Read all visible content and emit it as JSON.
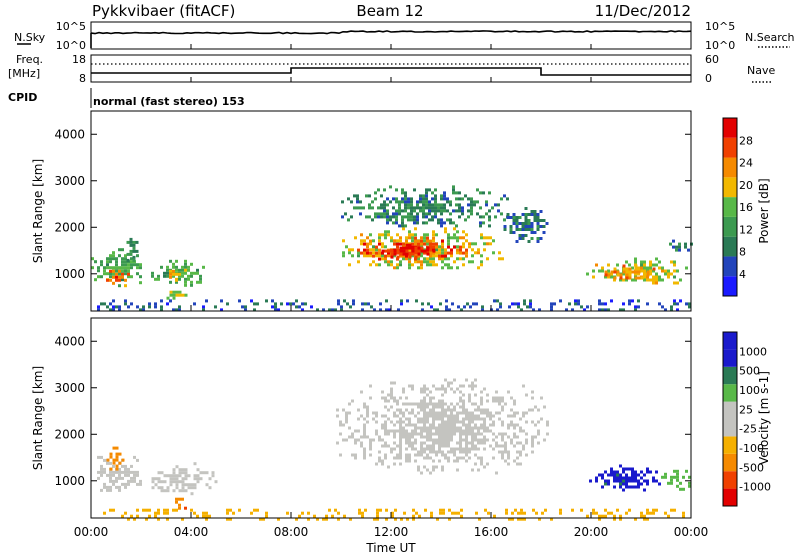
{
  "header": {
    "left_title": "Pykkvibaer (fitACF)",
    "center_title": "Beam 12",
    "right_title": "11/Dec/2012"
  },
  "strip1": {
    "left_label": "N.Sky",
    "right_label": "N.Search",
    "left_ticks": [
      "10^5",
      "10^0"
    ],
    "right_ticks": [
      "10^5",
      "10^0"
    ]
  },
  "strip2": {
    "left_label_1": "Freq.",
    "left_label_2": "[MHz]",
    "right_label": "Nave",
    "left_ticks": [
      "18",
      "8"
    ],
    "right_ticks": [
      "60",
      "0"
    ]
  },
  "cpid": {
    "label": "CPID",
    "text": "normal (fast stereo) 153"
  },
  "colors": {
    "power_scale": [
      "#1a1aff",
      "#2244bb",
      "#2a7a55",
      "#3c9a50",
      "#58b848",
      "#f2b800",
      "#f58a00",
      "#f04000",
      "#e30000"
    ],
    "velocity_scale": [
      "#e30000",
      "#f04000",
      "#f58a00",
      "#f5b000",
      "#c4c4c0",
      "#c4c4c0",
      "#58b848",
      "#2a7a55",
      "#1a1acc",
      "#1a1acc"
    ]
  },
  "chart_data": [
    {
      "type": "heatmap",
      "name": "power",
      "ylabel": "Slant Range [km]",
      "ylim": [
        200,
        4500
      ],
      "yticks": [
        "1000",
        "2000",
        "3000",
        "4000"
      ],
      "xlim": [
        0,
        24
      ],
      "colorbar_label": "Power [dB]",
      "colorbar_ticks": [
        "4",
        "8",
        "12",
        "16",
        "20",
        "24",
        "28"
      ],
      "colorbar_range": [
        0,
        32
      ],
      "regions": [
        {
          "t0": 0.0,
          "t1": 2.1,
          "r0": 750,
          "r1": 1550,
          "value": 14
        },
        {
          "t0": 0.6,
          "t1": 1.6,
          "r0": 800,
          "r1": 1150,
          "value": 25
        },
        {
          "t0": 1.3,
          "t1": 1.9,
          "r0": 1300,
          "r1": 1900,
          "value": 9
        },
        {
          "t0": 2.4,
          "t1": 4.6,
          "r0": 750,
          "r1": 1300,
          "value": 14
        },
        {
          "t0": 3.0,
          "t1": 3.8,
          "r0": 850,
          "r1": 1150,
          "value": 22
        },
        {
          "t0": 2.9,
          "t1": 3.9,
          "r0": 450,
          "r1": 700,
          "value": 19
        },
        {
          "t0": 9.8,
          "t1": 16.5,
          "r0": 1100,
          "r1": 2000,
          "value": 18
        },
        {
          "t0": 10.4,
          "t1": 15.2,
          "r0": 1300,
          "r1": 1800,
          "value": 26
        },
        {
          "t0": 11.5,
          "t1": 13.8,
          "r0": 1350,
          "r1": 1650,
          "value": 29
        },
        {
          "t0": 10.0,
          "t1": 16.8,
          "r0": 2000,
          "r1": 2900,
          "value": 10
        },
        {
          "t0": 16.5,
          "t1": 18.2,
          "r0": 1700,
          "r1": 2500,
          "value": 8
        },
        {
          "t0": 19.8,
          "t1": 24.0,
          "r0": 800,
          "r1": 1350,
          "value": 18
        },
        {
          "t0": 20.3,
          "t1": 22.6,
          "r0": 900,
          "r1": 1200,
          "value": 23
        },
        {
          "t0": 23.0,
          "t1": 24.0,
          "r0": 1400,
          "r1": 1800,
          "value": 8
        },
        {
          "t0": 0.0,
          "t1": 24.0,
          "r0": 200,
          "r1": 450,
          "value": 6
        }
      ]
    },
    {
      "type": "heatmap",
      "name": "velocity",
      "ylabel": "Slant Range [km]",
      "ylim": [
        200,
        4500
      ],
      "yticks": [
        "1000",
        "2000",
        "3000",
        "4000"
      ],
      "xlabel": "Time UT",
      "xlim": [
        0,
        24
      ],
      "xticks": [
        "00:00",
        "04:00",
        "08:00",
        "12:00",
        "16:00",
        "20:00",
        "00:00"
      ],
      "colorbar_label": "Velocity [m s-1]",
      "colorbar_ticks": [
        "1000",
        "500",
        "100",
        "25",
        "-25",
        "-100",
        "-500",
        "-1000"
      ],
      "regions": [
        {
          "t0": 0.0,
          "t1": 2.0,
          "r0": 750,
          "r1": 1600,
          "value": 0
        },
        {
          "t0": 0.5,
          "t1": 1.3,
          "r0": 1200,
          "r1": 1800,
          "value": -300
        },
        {
          "t0": 2.3,
          "t1": 5.0,
          "r0": 750,
          "r1": 1400,
          "value": 0
        },
        {
          "t0": 3.0,
          "t1": 3.8,
          "r0": 400,
          "r1": 700,
          "value": -400
        },
        {
          "t0": 9.8,
          "t1": 18.3,
          "r0": 1200,
          "r1": 3200,
          "value": 0
        },
        {
          "t0": 19.8,
          "t1": 22.8,
          "r0": 800,
          "r1": 1350,
          "value": 700
        },
        {
          "t0": 22.8,
          "t1": 24.0,
          "r0": 800,
          "r1": 1300,
          "value": 50
        },
        {
          "t0": 0.0,
          "t1": 24.0,
          "r0": 200,
          "r1": 400,
          "value": -60
        }
      ]
    }
  ]
}
